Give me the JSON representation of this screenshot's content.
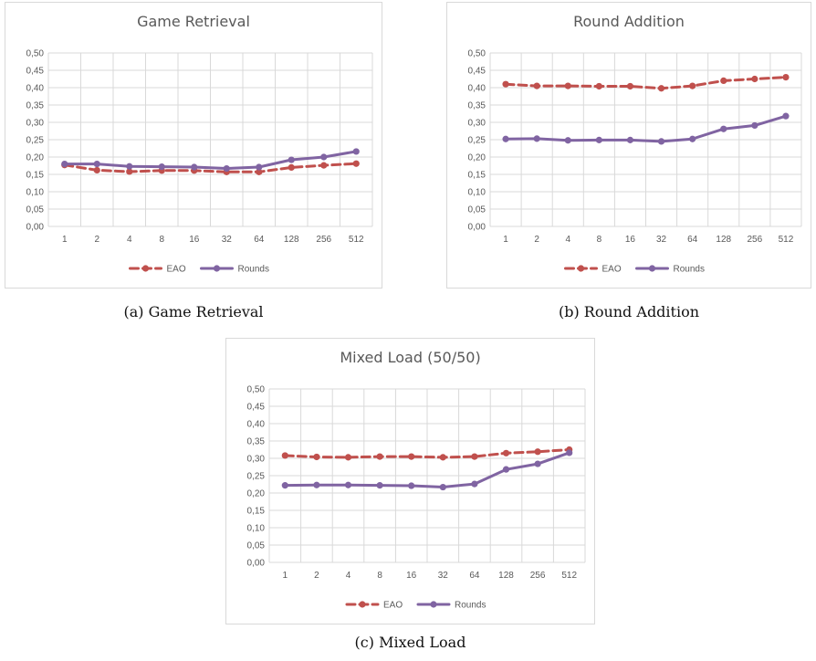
{
  "chart_data": [
    {
      "type": "line",
      "title": "Game Retrieval",
      "caption": "(a) Game Retrieval",
      "categories": [
        "1",
        "2",
        "4",
        "8",
        "16",
        "32",
        "64",
        "128",
        "256",
        "512"
      ],
      "y_ticks": [
        "0,00",
        "0,05",
        "0,10",
        "0,15",
        "0,20",
        "0,25",
        "0,30",
        "0,35",
        "0,40",
        "0,45",
        "0,50"
      ],
      "ylim": [
        0,
        0.5
      ],
      "grid": true,
      "legend_position": "bottom",
      "series": [
        {
          "name": "EAO",
          "color": "#c0504d",
          "style": "dashed",
          "values": [
            0.177,
            0.162,
            0.158,
            0.161,
            0.161,
            0.157,
            0.157,
            0.17,
            0.176,
            0.181
          ]
        },
        {
          "name": "Rounds",
          "color": "#8064a2",
          "style": "solid",
          "values": [
            0.18,
            0.18,
            0.173,
            0.172,
            0.171,
            0.167,
            0.171,
            0.192,
            0.2,
            0.216
          ]
        }
      ]
    },
    {
      "type": "line",
      "title": "Round Addition",
      "caption": "(b) Round Addition",
      "categories": [
        "1",
        "2",
        "4",
        "8",
        "16",
        "32",
        "64",
        "128",
        "256",
        "512"
      ],
      "y_ticks": [
        "0,00",
        "0,05",
        "0,10",
        "0,15",
        "0,20",
        "0,25",
        "0,30",
        "0,35",
        "0,40",
        "0,45",
        "0,50"
      ],
      "ylim": [
        0,
        0.5
      ],
      "grid": true,
      "legend_position": "bottom",
      "series": [
        {
          "name": "EAO",
          "color": "#c0504d",
          "style": "dashed",
          "values": [
            0.41,
            0.405,
            0.405,
            0.404,
            0.404,
            0.398,
            0.405,
            0.42,
            0.425,
            0.43
          ]
        },
        {
          "name": "Rounds",
          "color": "#8064a2",
          "style": "solid",
          "values": [
            0.252,
            0.253,
            0.248,
            0.249,
            0.249,
            0.245,
            0.252,
            0.281,
            0.291,
            0.318
          ]
        }
      ]
    },
    {
      "type": "line",
      "title": "Mixed Load (50/50)",
      "caption": "(c) Mixed Load",
      "categories": [
        "1",
        "2",
        "4",
        "8",
        "16",
        "32",
        "64",
        "128",
        "256",
        "512"
      ],
      "y_ticks": [
        "0,00",
        "0,05",
        "0,10",
        "0,15",
        "0,20",
        "0,25",
        "0,30",
        "0,35",
        "0,40",
        "0,45",
        "0,50"
      ],
      "ylim": [
        0,
        0.5
      ],
      "grid": true,
      "legend_position": "bottom",
      "series": [
        {
          "name": "EAO",
          "color": "#c0504d",
          "style": "dashed",
          "values": [
            0.308,
            0.304,
            0.303,
            0.305,
            0.305,
            0.303,
            0.305,
            0.315,
            0.319,
            0.325
          ]
        },
        {
          "name": "Rounds",
          "color": "#8064a2",
          "style": "solid",
          "values": [
            0.222,
            0.223,
            0.223,
            0.222,
            0.221,
            0.217,
            0.226,
            0.268,
            0.284,
            0.316
          ]
        }
      ]
    }
  ]
}
